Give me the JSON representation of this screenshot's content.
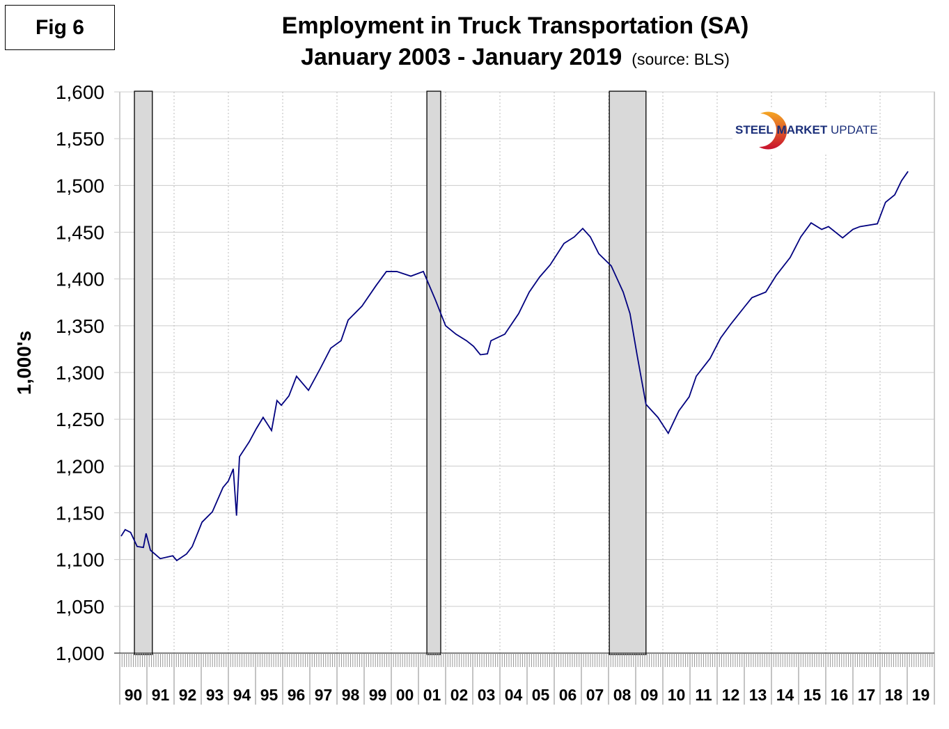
{
  "figure_label": "Fig 6",
  "logo": {
    "word1": "STEEL",
    "word2": "MARKET",
    "word3": "UPDATE",
    "colors": {
      "text": "#1b2f7a",
      "arc_top": "#f5a623",
      "arc_bottom": "#c8102e"
    }
  },
  "chart_data": {
    "type": "line",
    "title": "Employment in Truck Transportation (SA)",
    "subtitle": "January 2003 - January 2019",
    "source_note": "(source: BLS)",
    "ylabel": "1,000's",
    "xlabel": "",
    "ylim": [
      1000,
      1600
    ],
    "xlim": [
      1990,
      2020
    ],
    "y_ticks": [
      "1,000",
      "1,050",
      "1,100",
      "1,150",
      "1,200",
      "1,250",
      "1,300",
      "1,350",
      "1,400",
      "1,450",
      "1,500",
      "1,550",
      "1,600"
    ],
    "y_tick_values": [
      1000,
      1050,
      1100,
      1150,
      1200,
      1250,
      1300,
      1350,
      1400,
      1450,
      1500,
      1550,
      1600
    ],
    "x_tick_labels": [
      "90",
      "91",
      "92",
      "93",
      "94",
      "95",
      "96",
      "97",
      "98",
      "99",
      "00",
      "01",
      "02",
      "03",
      "04",
      "05",
      "06",
      "07",
      "08",
      "09",
      "10",
      "11",
      "12",
      "13",
      "14",
      "15",
      "16",
      "17",
      "18",
      "19"
    ],
    "grid": {
      "horizontal": true,
      "vertical": "dotted, every 2 years"
    },
    "line_color": "#00007f",
    "recession_color": "#d9d9d9",
    "recessions": [
      [
        1990.54,
        1991.2
      ],
      [
        2001.31,
        2001.82
      ],
      [
        2008.03,
        2009.38
      ]
    ],
    "series": [
      {
        "x": [
          1990.05,
          1990.2,
          1990.4,
          1990.64,
          1990.87,
          1990.97,
          1991.13,
          1991.49,
          1991.95,
          1992.1,
          1992.46,
          1992.67,
          1993.03,
          1993.41,
          1993.8,
          1994.0,
          1994.18,
          1994.3,
          1994.41,
          1994.77,
          1995.03,
          1995.28,
          1995.59,
          1995.79,
          1995.95,
          1996.23,
          1996.51,
          1996.95,
          1997.38,
          1997.77,
          1998.15,
          1998.41,
          1998.92,
          1999.44,
          1999.82,
          2000.2,
          2000.72,
          2001.18,
          2001.62,
          2002.0,
          2002.38,
          2002.77,
          2003.03,
          2003.28,
          2003.54,
          2003.67,
          2004.18,
          2004.69,
          2005.08,
          2005.46,
          2005.85,
          2006.36,
          2006.74,
          2007.05,
          2007.33,
          2007.64,
          2008.1,
          2008.54,
          2008.79,
          2009.05,
          2009.38,
          2009.82,
          2010.2,
          2010.59,
          2010.97,
          2011.23,
          2011.74,
          2012.13,
          2012.51,
          2013.03,
          2013.28,
          2013.79,
          2014.18,
          2014.69,
          2015.08,
          2015.46,
          2015.85,
          2016.1,
          2016.62,
          2017.0,
          2017.26,
          2017.9,
          2018.2,
          2018.54,
          2018.79,
          2019.03
        ],
        "y": [
          1125,
          1132,
          1129,
          1114,
          1113,
          1128,
          1110,
          1101,
          1104,
          1099,
          1106,
          1114,
          1140,
          1151,
          1177,
          1184,
          1197,
          1147,
          1210,
          1226,
          1240,
          1252,
          1238,
          1270,
          1265,
          1275,
          1296,
          1281,
          1304,
          1326,
          1334,
          1356,
          1371,
          1393,
          1408,
          1408,
          1403,
          1408,
          1378,
          1350,
          1341,
          1334,
          1328,
          1319,
          1320,
          1334,
          1341,
          1363,
          1386,
          1402,
          1415,
          1438,
          1445,
          1454,
          1445,
          1427,
          1414,
          1386,
          1363,
          1319,
          1266,
          1252,
          1235,
          1259,
          1274,
          1296,
          1315,
          1337,
          1352,
          1371,
          1380,
          1386,
          1404,
          1423,
          1445,
          1460,
          1453,
          1456,
          1444,
          1453,
          1456,
          1459,
          1482,
          1490,
          1505,
          1515
        ]
      }
    ]
  }
}
